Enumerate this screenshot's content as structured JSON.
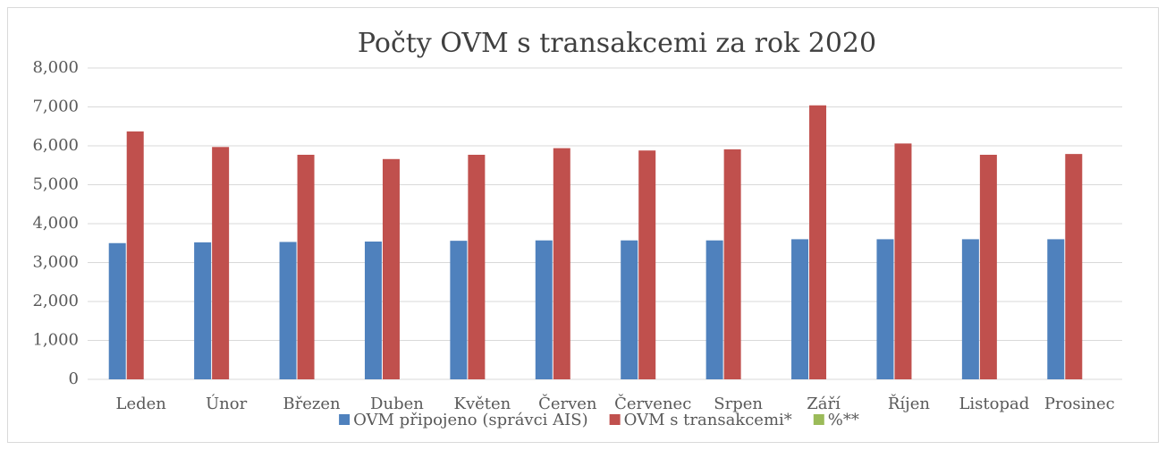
{
  "chart_data": {
    "type": "bar",
    "title": "Počty OVM s transakcemi za rok 2020",
    "categories": [
      "Leden",
      "Únor",
      "Březen",
      "Duben",
      "Květen",
      "Červen",
      "Červenec",
      "Srpen",
      "Září",
      "Říjen",
      "Listopad",
      "Prosinec"
    ],
    "series": [
      {
        "name": "OVM připojeno (správci AIS)",
        "color": "#4f81bd",
        "values": [
          3500,
          3520,
          3530,
          3540,
          3560,
          3570,
          3570,
          3570,
          3600,
          3600,
          3600,
          3600
        ]
      },
      {
        "name": "OVM s transakcemi*",
        "color": "#c0504d",
        "values": [
          6370,
          5970,
          5770,
          5660,
          5770,
          5940,
          5880,
          5910,
          7040,
          6060,
          5770,
          5790
        ]
      },
      {
        "name": "%**",
        "color": "#9bbb59",
        "values": [
          null,
          null,
          null,
          null,
          null,
          null,
          null,
          null,
          null,
          null,
          null,
          null
        ]
      }
    ],
    "ylim": [
      0,
      8000
    ],
    "yticks": [
      0,
      {
        "value": 1000,
        "label": "1,000"
      },
      {
        "value": 2000,
        "label": "2,000"
      },
      {
        "value": 3000,
        "label": "3,000"
      },
      {
        "value": 4000,
        "label": "4,000"
      },
      {
        "value": 5000,
        "label": "5,000"
      },
      {
        "value": 6000,
        "label": "6,000"
      },
      {
        "value": 7000,
        "label": "7,000"
      },
      {
        "value": 8000,
        "label": "8,000"
      }
    ],
    "grid": true,
    "legend": "bottom"
  }
}
